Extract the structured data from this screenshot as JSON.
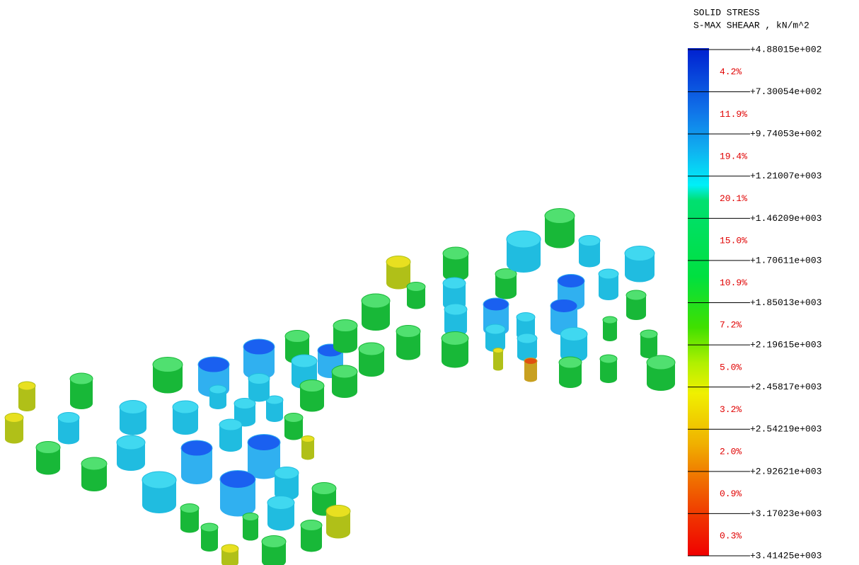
{
  "legend": {
    "title": [
      "SOLID STRESS",
      "S-MAX SHEAAR , kN/m^2"
    ],
    "levels": [
      "+4.88015e+002",
      "+7.30054e+002",
      "+9.74053e+002",
      "+1.21007e+003",
      "+1.46209e+003",
      "+1.70611e+003",
      "+1.85013e+003",
      "+2.19615e+003",
      "+2.45817e+003",
      "+2.54219e+003",
      "+2.92621e+003",
      "+3.17023e+003",
      "+3.41425e+003"
    ],
    "percentages": [
      "4.2%",
      "11.9%",
      "19.4%",
      "20.1%",
      "15.0%",
      "10.9%",
      "7.2%",
      "5.0%",
      "3.2%",
      "2.0%",
      "0.9%",
      "0.3%"
    ]
  }
}
